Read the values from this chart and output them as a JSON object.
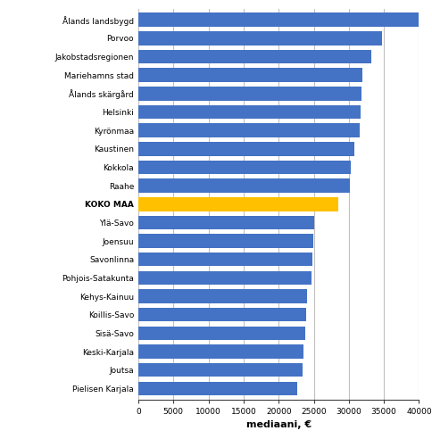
{
  "categories": [
    "Pielisen Karjala",
    "Joutsa",
    "Keski-Karjala",
    "Sisä-Savo",
    "Koillis-Savo",
    "Kehys-Kainuu",
    "Pohjois-Satakunta",
    "Savonlinna",
    "Joensuu",
    "Ylä-Savo",
    "KOKO MAA",
    "Raahe",
    "Kokkola",
    "Kaustinen",
    "Kyrönmaa",
    "Helsinki",
    "Ålands skärgård",
    "Mariehamns stad",
    "Jakobstadsregionen",
    "Porvoo",
    "Ålands landsbygd"
  ],
  "values": [
    22700,
    23400,
    23600,
    23800,
    23900,
    24100,
    24700,
    24800,
    24900,
    25000,
    28500,
    30200,
    30300,
    30800,
    31500,
    31700,
    31800,
    31900,
    33200,
    34700,
    40300
  ],
  "bar_colors": [
    "#4472C4",
    "#4472C4",
    "#4472C4",
    "#4472C4",
    "#4472C4",
    "#4472C4",
    "#4472C4",
    "#4472C4",
    "#4472C4",
    "#4472C4",
    "#FFC000",
    "#4472C4",
    "#4472C4",
    "#4472C4",
    "#4472C4",
    "#4472C4",
    "#4472C4",
    "#4472C4",
    "#4472C4",
    "#4472C4",
    "#4472C4"
  ],
  "xlabel": "mediaani, €",
  "xlim": [
    0,
    40000
  ],
  "xticks": [
    0,
    5000,
    10000,
    15000,
    20000,
    25000,
    30000,
    35000,
    40000
  ],
  "bar_height": 0.75,
  "bold_labels": [
    "KOKO MAA"
  ],
  "background_color": "#ffffff",
  "grid_color": "#c0c0c0",
  "axis_color": "#404040",
  "label_fontsize": 6.5,
  "tick_fontsize": 6.5,
  "xlabel_fontsize": 8
}
